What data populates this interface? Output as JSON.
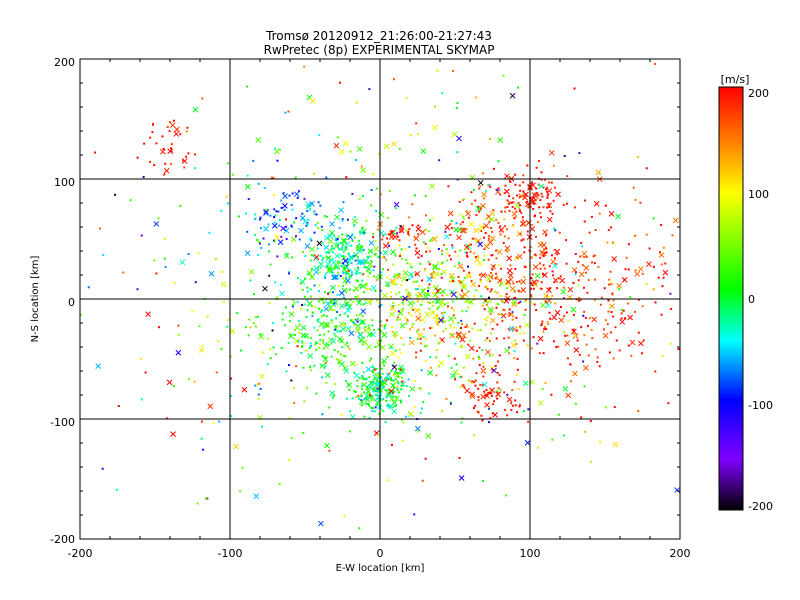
{
  "chart_data": {
    "type": "scatter",
    "title": "Tromsø 20120912_21:26:00-21:27:43",
    "subtitle": "RwPretec (8p) EXPERIMENTAL SKYMAP",
    "xlabel": "E-W location [km]",
    "ylabel": "N-S location [km]",
    "xlim": [
      -200,
      200
    ],
    "ylim": [
      -200,
      200
    ],
    "xticks": [
      "-200",
      "-100",
      "0",
      "100",
      "200"
    ],
    "yticks": [
      "200",
      "100",
      "0",
      "-100",
      "-200"
    ],
    "grid": true,
    "marker_types": [
      "dot",
      "cross"
    ],
    "colorbar": {
      "unit": "[m/s]",
      "range": [
        -200,
        200
      ],
      "ticks": [
        "200",
        "100",
        "0",
        "-100",
        "-200"
      ],
      "colormap": [
        "#000000",
        "#8000ff",
        "#0000ff",
        "#00ffff",
        "#00ff00",
        "#ffff00",
        "#ff8000",
        "#ff0000"
      ]
    },
    "clusters": [
      {
        "x": 0,
        "y": -75,
        "spread": 10,
        "count": 240,
        "velocity": -10,
        "vel_spread": 25
      },
      {
        "x": -25,
        "y": 35,
        "spread": 14,
        "count": 220,
        "velocity": -20,
        "vel_spread": 30
      },
      {
        "x": -35,
        "y": -25,
        "spread": 22,
        "count": 260,
        "velocity": 5,
        "vel_spread": 40
      },
      {
        "x": 20,
        "y": 5,
        "spread": 25,
        "count": 260,
        "velocity": 50,
        "vel_spread": 45
      },
      {
        "x": -60,
        "y": 70,
        "spread": 18,
        "count": 90,
        "velocity": -70,
        "vel_spread": 40
      },
      {
        "x": 100,
        "y": 85,
        "spread": 10,
        "count": 90,
        "velocity": 195,
        "vel_spread": 10
      },
      {
        "x": 70,
        "y": 55,
        "spread": 20,
        "count": 120,
        "velocity": 170,
        "vel_spread": 30
      },
      {
        "x": 120,
        "y": 10,
        "spread": 40,
        "count": 380,
        "velocity": 185,
        "vel_spread": 25
      },
      {
        "x": 75,
        "y": -75,
        "spread": 12,
        "count": 70,
        "velocity": 190,
        "vel_spread": 10
      },
      {
        "x": -140,
        "y": 125,
        "spread": 10,
        "count": 35,
        "velocity": 190,
        "vel_spread": 15
      },
      {
        "x": 60,
        "y": -20,
        "spread": 30,
        "count": 180,
        "velocity": 110,
        "vel_spread": 60
      },
      {
        "x": 10,
        "y": 55,
        "spread": 8,
        "count": 30,
        "velocity": 190,
        "vel_spread": 15
      },
      {
        "x": 0,
        "y": 0,
        "spread": 90,
        "count": 500,
        "velocity": 40,
        "vel_spread": 110
      }
    ]
  }
}
